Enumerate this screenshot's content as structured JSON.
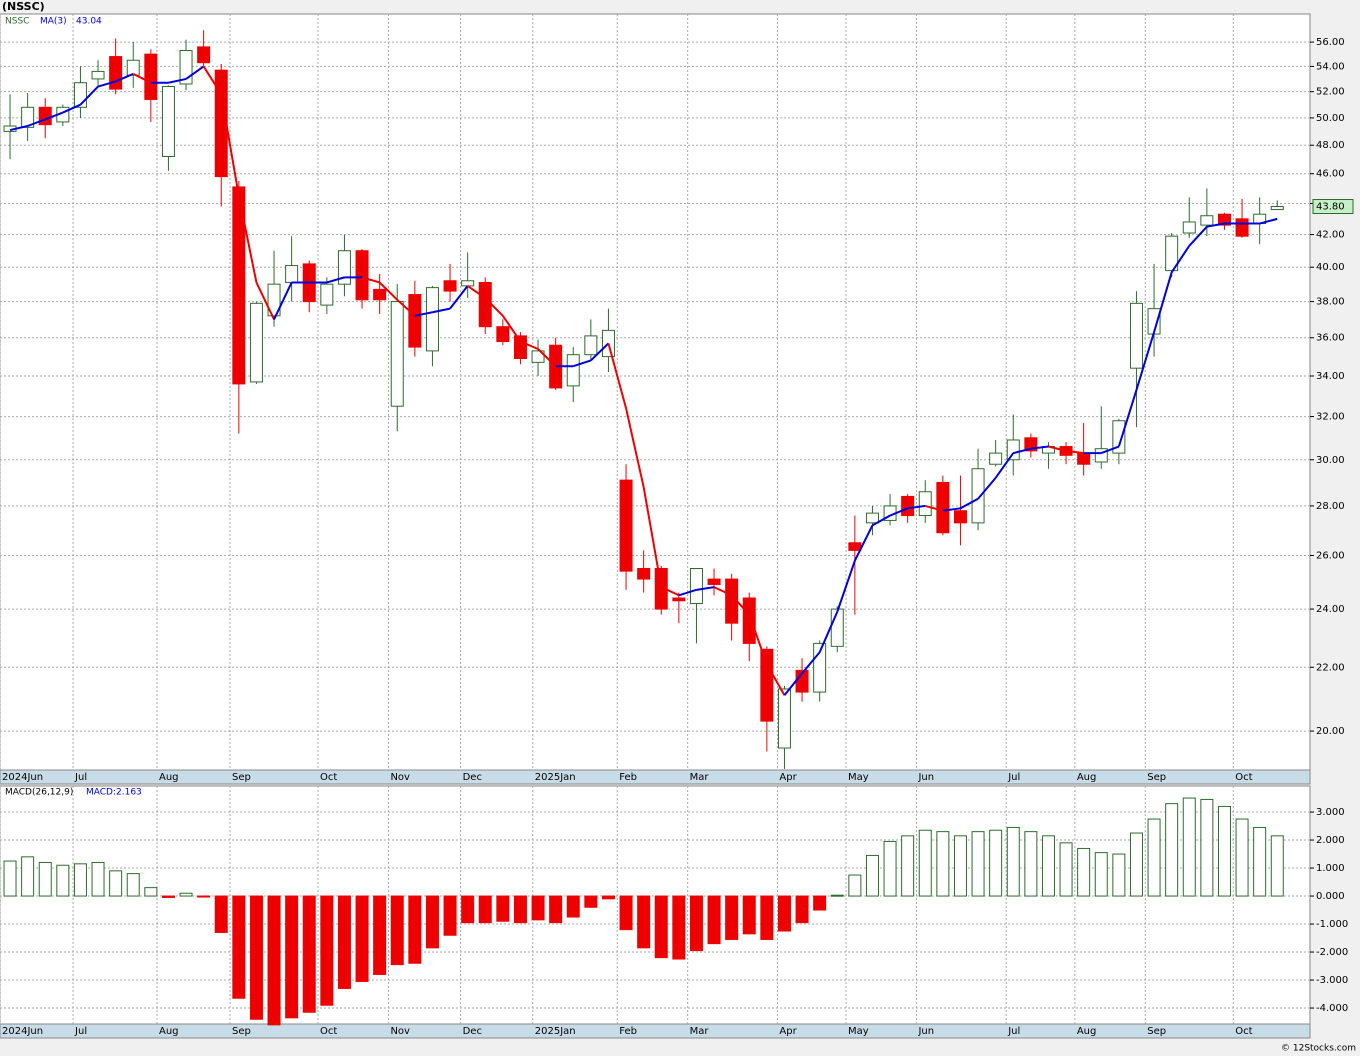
{
  "chart_data": [
    {
      "type": "candlestick",
      "title": "(NSSC)",
      "symbol": "NSSC",
      "up_color": "#2e6b2e",
      "down_color": "#ee0000",
      "log_scale": true,
      "grid": true,
      "open": [
        49.0,
        49.3,
        50.8,
        49.7,
        50.8,
        53.0,
        54.8,
        53.3,
        55.0,
        47.2,
        52.6,
        55.6,
        53.7,
        45.1,
        33.7,
        37.2,
        39.1,
        40.2,
        37.8,
        39.0,
        41.0,
        38.7,
        32.5,
        38.4,
        35.3,
        39.2,
        38.9,
        39.1,
        36.6,
        36.1,
        34.7,
        35.6,
        33.5,
        35.1,
        35.0,
        29.1,
        25.5,
        25.5,
        24.4,
        24.2,
        25.1,
        25.1,
        24.4,
        22.6,
        19.5,
        21.9,
        21.2,
        22.7,
        26.5,
        27.3,
        27.4,
        28.4,
        27.6,
        29.0,
        27.8,
        27.3,
        29.8,
        30.0,
        31.0,
        30.3,
        30.6,
        30.3,
        29.9,
        30.3,
        34.4,
        36.2,
        39.8,
        42.1,
        42.6,
        43.3,
        43.0,
        42.7,
        43.6
      ],
      "high": [
        51.8,
        51.9,
        51.5,
        51.0,
        54.0,
        54.5,
        56.3,
        56.0,
        55.4,
        52.5,
        56.2,
        57.0,
        54.2,
        45.5,
        38.0,
        41.0,
        41.9,
        40.4,
        39.4,
        42.0,
        41.1,
        39.6,
        39.0,
        39.2,
        38.9,
        40.2,
        40.9,
        39.4,
        37.0,
        36.3,
        35.9,
        36.0,
        35.5,
        37.0,
        37.6,
        29.8,
        26.2,
        25.6,
        24.6,
        25.5,
        25.5,
        25.3,
        24.6,
        22.7,
        21.4,
        22.3,
        22.9,
        24.1,
        27.6,
        28.0,
        28.5,
        28.5,
        29.1,
        29.3,
        29.3,
        30.5,
        30.9,
        32.1,
        31.2,
        30.8,
        30.8,
        31.7,
        32.5,
        31.9,
        38.6,
        40.2,
        42.1,
        44.4,
        45.0,
        43.4,
        44.3,
        44.4,
        44.2
      ],
      "low": [
        47.0,
        48.3,
        48.5,
        49.4,
        50.0,
        52.4,
        51.8,
        52.3,
        49.7,
        46.2,
        52.1,
        54.0,
        43.8,
        31.2,
        33.6,
        36.6,
        38.0,
        37.4,
        37.3,
        38.3,
        37.6,
        37.3,
        31.3,
        35.0,
        34.5,
        38.0,
        38.2,
        36.2,
        35.6,
        34.6,
        34.0,
        33.3,
        32.7,
        34.8,
        34.2,
        24.7,
        24.6,
        23.8,
        23.5,
        22.8,
        24.5,
        22.9,
        22.2,
        19.4,
        18.9,
        20.9,
        20.9,
        22.5,
        23.8,
        26.8,
        27.2,
        27.3,
        27.3,
        26.8,
        26.4,
        27.0,
        29.7,
        29.3,
        30.1,
        29.6,
        29.8,
        29.3,
        29.6,
        29.8,
        31.5,
        35.0,
        39.4,
        41.8,
        41.9,
        42.3,
        41.8,
        41.4,
        43.6
      ],
      "close": [
        49.4,
        50.8,
        49.5,
        50.8,
        52.7,
        53.6,
        52.2,
        54.5,
        51.4,
        52.4,
        55.3,
        54.3,
        45.8,
        33.6,
        37.9,
        39.0,
        40.1,
        38.0,
        39.0,
        41.0,
        38.1,
        38.1,
        38.0,
        35.5,
        38.8,
        38.6,
        39.2,
        36.6,
        35.8,
        34.9,
        35.3,
        33.4,
        35.1,
        36.1,
        36.4,
        25.4,
        25.1,
        24.0,
        24.3,
        25.5,
        24.9,
        23.5,
        22.8,
        20.3,
        21.3,
        21.2,
        22.8,
        24.0,
        26.2,
        27.7,
        28.0,
        27.6,
        28.6,
        26.9,
        27.3,
        29.6,
        30.3,
        30.9,
        30.4,
        30.6,
        30.2,
        29.8,
        30.5,
        31.8,
        37.9,
        37.6,
        41.9,
        42.8,
        43.2,
        42.6,
        41.9,
        43.3,
        43.8
      ],
      "ma": {
        "name": "MA(3)",
        "last_label": "43.04",
        "up_color": "#0000dd",
        "down_color": "#ee0000",
        "values": [
          49.1,
          49.4,
          49.9,
          50.4,
          51.0,
          52.4,
          52.8,
          53.4,
          52.7,
          52.7,
          53.0,
          54.0,
          51.8,
          44.5,
          39.1,
          37.0,
          39.1,
          39.1,
          39.1,
          39.4,
          39.4,
          39.1,
          38.1,
          37.2,
          37.4,
          37.6,
          38.9,
          38.2,
          37.2,
          35.8,
          35.4,
          34.5,
          34.5,
          34.8,
          35.7,
          32.4,
          28.8,
          24.8,
          24.5,
          24.7,
          24.8,
          24.5,
          23.8,
          22.1,
          21.1,
          21.8,
          22.5,
          23.9,
          25.8,
          27.2,
          27.6,
          27.9,
          28.0,
          27.8,
          27.9,
          28.3,
          29.2,
          30.3,
          30.5,
          30.6,
          30.4,
          30.3,
          30.3,
          30.6,
          33.3,
          36.3,
          39.7,
          41.3,
          42.5,
          42.7,
          42.7,
          42.7,
          43.0
        ]
      },
      "last_price_tag": "43.80",
      "xlim": [
        -0.57,
        73.86
      ],
      "ylim": [
        18.87,
        58.4
      ],
      "xticks": [
        {
          "value": -0.57,
          "label": "2024Jun"
        },
        {
          "value": 3.58,
          "label": "Jul"
        },
        {
          "value": 8.35,
          "label": "Aug"
        },
        {
          "value": 12.5,
          "label": "Sep"
        },
        {
          "value": 17.5,
          "label": "Oct"
        },
        {
          "value": 21.5,
          "label": "Nov"
        },
        {
          "value": 25.6,
          "label": "Dec"
        },
        {
          "value": 29.7,
          "label": "2025Jan"
        },
        {
          "value": 34.5,
          "label": "Feb"
        },
        {
          "value": 38.5,
          "label": "Mar"
        },
        {
          "value": 43.6,
          "label": "Apr"
        },
        {
          "value": 47.5,
          "label": "May"
        },
        {
          "value": 51.5,
          "label": "Jun"
        },
        {
          "value": 56.6,
          "label": "Jul"
        },
        {
          "value": 60.5,
          "label": "Aug"
        },
        {
          "value": 64.5,
          "label": "Sep"
        },
        {
          "value": 69.5,
          "label": "Oct"
        }
      ],
      "yticks": [
        {
          "value": 20,
          "label": "20.00"
        },
        {
          "value": 22,
          "label": "22.00"
        },
        {
          "value": 24,
          "label": "24.00"
        },
        {
          "value": 26,
          "label": "26.00"
        },
        {
          "value": 28,
          "label": "28.00"
        },
        {
          "value": 30,
          "label": "30.00"
        },
        {
          "value": 32,
          "label": "32.00"
        },
        {
          "value": 34,
          "label": "34.00"
        },
        {
          "value": 36,
          "label": "36.00"
        },
        {
          "value": 38,
          "label": "38.00"
        },
        {
          "value": 40,
          "label": "40.00"
        },
        {
          "value": 42,
          "label": "42.00"
        },
        {
          "value": 44,
          "label": "44.00"
        },
        {
          "value": 46,
          "label": "46.00"
        },
        {
          "value": 48,
          "label": "48.00"
        },
        {
          "value": 50,
          "label": "50.00"
        },
        {
          "value": 52,
          "label": "52.00"
        },
        {
          "value": 54,
          "label": "54.00"
        },
        {
          "value": 56,
          "label": "56.00"
        }
      ]
    },
    {
      "type": "bar",
      "title": "MACD(26,12,9)",
      "value_title": "MACD:2.163",
      "up_color": "#2e6b2e",
      "down_color": "#ee0000",
      "grid": true,
      "values": [
        1.25,
        1.4,
        1.2,
        1.1,
        1.15,
        1.2,
        0.9,
        0.8,
        0.3,
        -0.05,
        0.1,
        -0.02,
        -1.3,
        -3.65,
        -4.4,
        -4.6,
        -4.35,
        -4.15,
        -3.9,
        -3.3,
        -3.05,
        -2.8,
        -2.45,
        -2.4,
        -1.85,
        -1.4,
        -0.95,
        -0.95,
        -0.9,
        -0.95,
        -0.85,
        -0.95,
        -0.75,
        -0.4,
        -0.1,
        -1.2,
        -1.85,
        -2.2,
        -2.25,
        -1.95,
        -1.7,
        -1.55,
        -1.35,
        -1.55,
        -1.25,
        -0.95,
        -0.5,
        0.03,
        0.75,
        1.45,
        1.95,
        2.15,
        2.35,
        2.3,
        2.15,
        2.3,
        2.35,
        2.45,
        2.3,
        2.15,
        1.9,
        1.7,
        1.55,
        1.5,
        2.25,
        2.75,
        3.3,
        3.5,
        3.45,
        3.2,
        2.75,
        2.45,
        2.15
      ],
      "xlim": [
        -0.57,
        73.86
      ],
      "ylim": [
        -4.57,
        3.93
      ],
      "xticks": [
        {
          "value": -0.57,
          "label": "2024Jun"
        },
        {
          "value": 3.58,
          "label": "Jul"
        },
        {
          "value": 8.35,
          "label": "Aug"
        },
        {
          "value": 12.5,
          "label": "Sep"
        },
        {
          "value": 17.5,
          "label": "Oct"
        },
        {
          "value": 21.5,
          "label": "Nov"
        },
        {
          "value": 25.6,
          "label": "Dec"
        },
        {
          "value": 29.7,
          "label": "2025Jan"
        },
        {
          "value": 34.5,
          "label": "Feb"
        },
        {
          "value": 38.5,
          "label": "Mar"
        },
        {
          "value": 43.6,
          "label": "Apr"
        },
        {
          "value": 47.5,
          "label": "May"
        },
        {
          "value": 51.5,
          "label": "Jun"
        },
        {
          "value": 56.6,
          "label": "Jul"
        },
        {
          "value": 60.5,
          "label": "Aug"
        },
        {
          "value": 64.5,
          "label": "Sep"
        },
        {
          "value": 69.5,
          "label": "Oct"
        }
      ],
      "yticks": [
        {
          "value": 3,
          "label": "3.000"
        },
        {
          "value": 2,
          "label": "2.000"
        },
        {
          "value": 1,
          "label": "1.000"
        },
        {
          "value": 0,
          "label": "0.000"
        },
        {
          "value": -1,
          "label": "-1.000"
        },
        {
          "value": -2,
          "label": "-2.000"
        },
        {
          "value": -3,
          "label": "-3.000"
        },
        {
          "value": -4,
          "label": "-4.000"
        }
      ]
    }
  ],
  "footer": "© 12Stocks.com"
}
